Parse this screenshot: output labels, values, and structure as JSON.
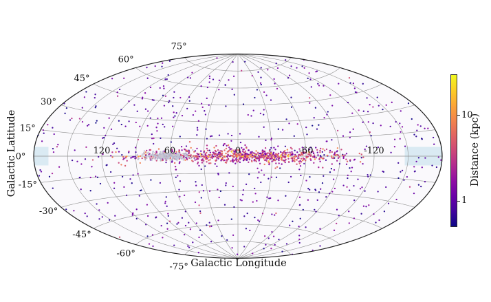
{
  "figure": {
    "kind": "all-sky scatter map",
    "xlabel": "Galactic Longitude",
    "ylabel": "Galactic Latitude"
  },
  "chart_data": {
    "type": "scatter",
    "projection": "aitoff",
    "title": "",
    "xlabel": "Galactic Longitude",
    "ylabel": "Galactic Latitude",
    "lon_gridlines_deg": [
      -150,
      -120,
      -90,
      -60,
      -30,
      0,
      30,
      60,
      90,
      120,
      150
    ],
    "lat_gridlines_deg": [
      -75,
      -60,
      -45,
      -30,
      -15,
      0,
      15,
      30,
      45,
      60,
      75
    ],
    "lon_tick_labels": [
      {
        "value": 120,
        "label": "120"
      },
      {
        "value": 60,
        "label": "60"
      },
      {
        "value": 0,
        "label": "0"
      },
      {
        "value": -60,
        "label": "-60"
      },
      {
        "value": -120,
        "label": "-120"
      }
    ],
    "lat_tick_labels": [
      {
        "value": 75,
        "label": "75°"
      },
      {
        "value": 60,
        "label": "60°"
      },
      {
        "value": 45,
        "label": "45°"
      },
      {
        "value": 30,
        "label": "30°"
      },
      {
        "value": 15,
        "label": "15°"
      },
      {
        "value": 0,
        "label": "0°"
      },
      {
        "value": -15,
        "label": "-15°"
      },
      {
        "value": -30,
        "label": "-30°"
      },
      {
        "value": -45,
        "label": "-45°"
      },
      {
        "value": -60,
        "label": "-60°"
      },
      {
        "value": -75,
        "label": "-75°"
      }
    ],
    "colorbar": {
      "label": "Distance (kpc)",
      "scale": "log",
      "vmin": 0.5,
      "vmax": 30,
      "ticks": [
        {
          "value": 10,
          "label": "10"
        },
        {
          "value": 1,
          "label": "1"
        }
      ],
      "colormap": "plasma",
      "stops": [
        [
          0.0,
          "#0d0887"
        ],
        [
          0.1,
          "#41049d"
        ],
        [
          0.2,
          "#6a00a8"
        ],
        [
          0.3,
          "#8f0da4"
        ],
        [
          0.4,
          "#b12a90"
        ],
        [
          0.5,
          "#cc4778"
        ],
        [
          0.6,
          "#e16462"
        ],
        [
          0.7,
          "#f2844b"
        ],
        [
          0.8,
          "#fca636"
        ],
        [
          0.9,
          "#fcce25"
        ],
        [
          1.0,
          "#f0f921"
        ]
      ]
    },
    "masked_regions": [
      {
        "name": "left-equator-mask",
        "lon_min": 167,
        "lon_max": 180,
        "lat_min": -5.2,
        "lat_max": 5.2,
        "color": "#cfe4f0"
      },
      {
        "name": "right-equator-mask",
        "lon_min": -180,
        "lon_max": -147,
        "lat_min": -5.2,
        "lat_max": 5.2,
        "color": "#cfe4f0"
      }
    ],
    "populations": [
      {
        "name": "halo-sources",
        "count": 640,
        "seed": 101,
        "lon": {
          "type": "uniform",
          "min": -180,
          "max": 180
        },
        "lat": {
          "type": "isotropic"
        },
        "dist": {
          "type": "logrange",
          "min": 0.5,
          "max": 1.7
        },
        "bright_fraction": 0.08,
        "bright_boost": 3.0,
        "radius": 1.15,
        "opacity": 0.95
      },
      {
        "name": "galactic-plane-sources",
        "count": 760,
        "seed": 202,
        "lon": {
          "type": "gauss",
          "mean": -5,
          "sigma": 54,
          "clip": 112
        },
        "lat": {
          "type": "gauss2",
          "sigma1": 2.4,
          "sigma2": 5.5,
          "frac2": 0.28
        },
        "dist": {
          "type": "logrange",
          "min": 1.1,
          "max": 9
        },
        "centerline_boost": {
          "lat_scale": 2.2,
          "factor": 2.6,
          "prob": 0.45
        },
        "radius": 1.2,
        "opacity": 0.95
      },
      {
        "name": "masked-plane-sources",
        "count": 235,
        "seed": 303,
        "lon": {
          "type": "gauss",
          "mean": 62,
          "sigma": 11,
          "clip_min": 32,
          "clip_max": 95
        },
        "lat": {
          "type": "gauss",
          "sigma": 1.6
        },
        "colors": [
          "#c6c7d8",
          "#b7b9cb",
          "#adb6cf",
          "#c9c4d2"
        ],
        "radius": 1.2,
        "opacity": 0.9
      }
    ],
    "style": {
      "plot_background": "#faf9fc",
      "grid_color": "#8f8f8f",
      "boundary_color": "#1f1f1f",
      "label_color": "#111111",
      "mask_color": "#cfe4f0"
    },
    "axis_ranges": {
      "lon_deg": [
        -180,
        180
      ],
      "lat_deg": [
        -90,
        90
      ]
    },
    "legend": null,
    "grid": true
  }
}
